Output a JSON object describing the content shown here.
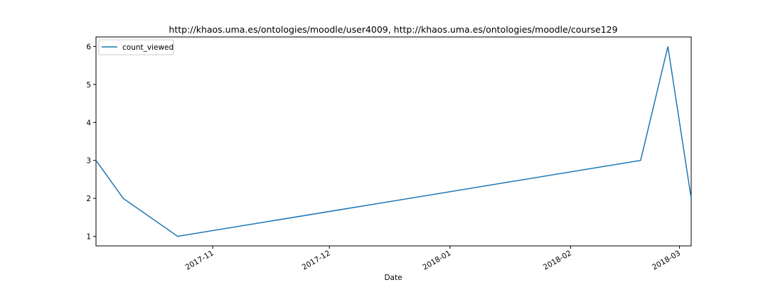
{
  "chart_data": {
    "type": "line",
    "title": "http://khaos.uma.es/ontologies/moodle/user4009, http://khaos.uma.es/ontologies/moodle/course129",
    "xlabel": "Date",
    "ylabel": "",
    "x_type": "date",
    "xlim": [
      "2017-10-02",
      "2018-03-04"
    ],
    "ylim": [
      0.75,
      6.25
    ],
    "x_ticks": [
      {
        "date": "2017-11-01",
        "label": "2017-11"
      },
      {
        "date": "2017-12-01",
        "label": "2017-12"
      },
      {
        "date": "2018-01-01",
        "label": "2018-01"
      },
      {
        "date": "2018-02-01",
        "label": "2018-02"
      },
      {
        "date": "2018-03-01",
        "label": "2018-03"
      }
    ],
    "y_ticks": [
      1,
      2,
      3,
      4,
      5,
      6
    ],
    "grid": false,
    "legend_position": "top-left",
    "series": [
      {
        "name": "count_viewed",
        "color": "#1f77b4",
        "x": [
          "2017-10-02",
          "2017-10-09",
          "2017-10-23",
          "2018-02-19",
          "2018-02-26",
          "2018-03-04"
        ],
        "y": [
          3,
          2,
          1,
          3,
          6,
          2
        ]
      }
    ]
  }
}
